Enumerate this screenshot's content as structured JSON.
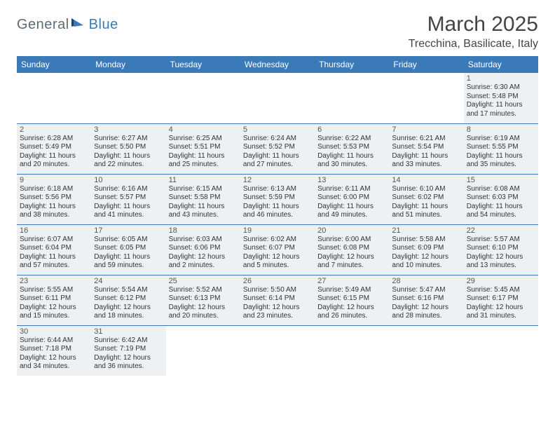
{
  "brand": {
    "part1": "General",
    "part2": "Blue"
  },
  "title": "March 2025",
  "location": "Trecchina, Basilicate, Italy",
  "colors": {
    "header_bg": "#3a7ab8",
    "header_text": "#ffffff",
    "cell_border": "#3a7ab8",
    "shade_bg": "#eef1f3",
    "body_text": "#333333",
    "logo_gray": "#5e6b74",
    "logo_blue": "#3a7ab8"
  },
  "weekdays": [
    "Sunday",
    "Monday",
    "Tuesday",
    "Wednesday",
    "Thursday",
    "Friday",
    "Saturday"
  ],
  "weeks": [
    [
      null,
      null,
      null,
      null,
      null,
      null,
      {
        "n": "1",
        "sr": "Sunrise: 6:30 AM",
        "ss": "Sunset: 5:48 PM",
        "d1": "Daylight: 11 hours",
        "d2": "and 17 minutes."
      }
    ],
    [
      {
        "n": "2",
        "sr": "Sunrise: 6:28 AM",
        "ss": "Sunset: 5:49 PM",
        "d1": "Daylight: 11 hours",
        "d2": "and 20 minutes."
      },
      {
        "n": "3",
        "sr": "Sunrise: 6:27 AM",
        "ss": "Sunset: 5:50 PM",
        "d1": "Daylight: 11 hours",
        "d2": "and 22 minutes."
      },
      {
        "n": "4",
        "sr": "Sunrise: 6:25 AM",
        "ss": "Sunset: 5:51 PM",
        "d1": "Daylight: 11 hours",
        "d2": "and 25 minutes."
      },
      {
        "n": "5",
        "sr": "Sunrise: 6:24 AM",
        "ss": "Sunset: 5:52 PM",
        "d1": "Daylight: 11 hours",
        "d2": "and 27 minutes."
      },
      {
        "n": "6",
        "sr": "Sunrise: 6:22 AM",
        "ss": "Sunset: 5:53 PM",
        "d1": "Daylight: 11 hours",
        "d2": "and 30 minutes."
      },
      {
        "n": "7",
        "sr": "Sunrise: 6:21 AM",
        "ss": "Sunset: 5:54 PM",
        "d1": "Daylight: 11 hours",
        "d2": "and 33 minutes."
      },
      {
        "n": "8",
        "sr": "Sunrise: 6:19 AM",
        "ss": "Sunset: 5:55 PM",
        "d1": "Daylight: 11 hours",
        "d2": "and 35 minutes."
      }
    ],
    [
      {
        "n": "9",
        "sr": "Sunrise: 6:18 AM",
        "ss": "Sunset: 5:56 PM",
        "d1": "Daylight: 11 hours",
        "d2": "and 38 minutes."
      },
      {
        "n": "10",
        "sr": "Sunrise: 6:16 AM",
        "ss": "Sunset: 5:57 PM",
        "d1": "Daylight: 11 hours",
        "d2": "and 41 minutes."
      },
      {
        "n": "11",
        "sr": "Sunrise: 6:15 AM",
        "ss": "Sunset: 5:58 PM",
        "d1": "Daylight: 11 hours",
        "d2": "and 43 minutes."
      },
      {
        "n": "12",
        "sr": "Sunrise: 6:13 AM",
        "ss": "Sunset: 5:59 PM",
        "d1": "Daylight: 11 hours",
        "d2": "and 46 minutes."
      },
      {
        "n": "13",
        "sr": "Sunrise: 6:11 AM",
        "ss": "Sunset: 6:00 PM",
        "d1": "Daylight: 11 hours",
        "d2": "and 49 minutes."
      },
      {
        "n": "14",
        "sr": "Sunrise: 6:10 AM",
        "ss": "Sunset: 6:02 PM",
        "d1": "Daylight: 11 hours",
        "d2": "and 51 minutes."
      },
      {
        "n": "15",
        "sr": "Sunrise: 6:08 AM",
        "ss": "Sunset: 6:03 PM",
        "d1": "Daylight: 11 hours",
        "d2": "and 54 minutes."
      }
    ],
    [
      {
        "n": "16",
        "sr": "Sunrise: 6:07 AM",
        "ss": "Sunset: 6:04 PM",
        "d1": "Daylight: 11 hours",
        "d2": "and 57 minutes."
      },
      {
        "n": "17",
        "sr": "Sunrise: 6:05 AM",
        "ss": "Sunset: 6:05 PM",
        "d1": "Daylight: 11 hours",
        "d2": "and 59 minutes."
      },
      {
        "n": "18",
        "sr": "Sunrise: 6:03 AM",
        "ss": "Sunset: 6:06 PM",
        "d1": "Daylight: 12 hours",
        "d2": "and 2 minutes."
      },
      {
        "n": "19",
        "sr": "Sunrise: 6:02 AM",
        "ss": "Sunset: 6:07 PM",
        "d1": "Daylight: 12 hours",
        "d2": "and 5 minutes."
      },
      {
        "n": "20",
        "sr": "Sunrise: 6:00 AM",
        "ss": "Sunset: 6:08 PM",
        "d1": "Daylight: 12 hours",
        "d2": "and 7 minutes."
      },
      {
        "n": "21",
        "sr": "Sunrise: 5:58 AM",
        "ss": "Sunset: 6:09 PM",
        "d1": "Daylight: 12 hours",
        "d2": "and 10 minutes."
      },
      {
        "n": "22",
        "sr": "Sunrise: 5:57 AM",
        "ss": "Sunset: 6:10 PM",
        "d1": "Daylight: 12 hours",
        "d2": "and 13 minutes."
      }
    ],
    [
      {
        "n": "23",
        "sr": "Sunrise: 5:55 AM",
        "ss": "Sunset: 6:11 PM",
        "d1": "Daylight: 12 hours",
        "d2": "and 15 minutes."
      },
      {
        "n": "24",
        "sr": "Sunrise: 5:54 AM",
        "ss": "Sunset: 6:12 PM",
        "d1": "Daylight: 12 hours",
        "d2": "and 18 minutes."
      },
      {
        "n": "25",
        "sr": "Sunrise: 5:52 AM",
        "ss": "Sunset: 6:13 PM",
        "d1": "Daylight: 12 hours",
        "d2": "and 20 minutes."
      },
      {
        "n": "26",
        "sr": "Sunrise: 5:50 AM",
        "ss": "Sunset: 6:14 PM",
        "d1": "Daylight: 12 hours",
        "d2": "and 23 minutes."
      },
      {
        "n": "27",
        "sr": "Sunrise: 5:49 AM",
        "ss": "Sunset: 6:15 PM",
        "d1": "Daylight: 12 hours",
        "d2": "and 26 minutes."
      },
      {
        "n": "28",
        "sr": "Sunrise: 5:47 AM",
        "ss": "Sunset: 6:16 PM",
        "d1": "Daylight: 12 hours",
        "d2": "and 28 minutes."
      },
      {
        "n": "29",
        "sr": "Sunrise: 5:45 AM",
        "ss": "Sunset: 6:17 PM",
        "d1": "Daylight: 12 hours",
        "d2": "and 31 minutes."
      }
    ],
    [
      {
        "n": "30",
        "sr": "Sunrise: 6:44 AM",
        "ss": "Sunset: 7:18 PM",
        "d1": "Daylight: 12 hours",
        "d2": "and 34 minutes."
      },
      {
        "n": "31",
        "sr": "Sunrise: 6:42 AM",
        "ss": "Sunset: 7:19 PM",
        "d1": "Daylight: 12 hours",
        "d2": "and 36 minutes."
      },
      null,
      null,
      null,
      null,
      null
    ]
  ]
}
